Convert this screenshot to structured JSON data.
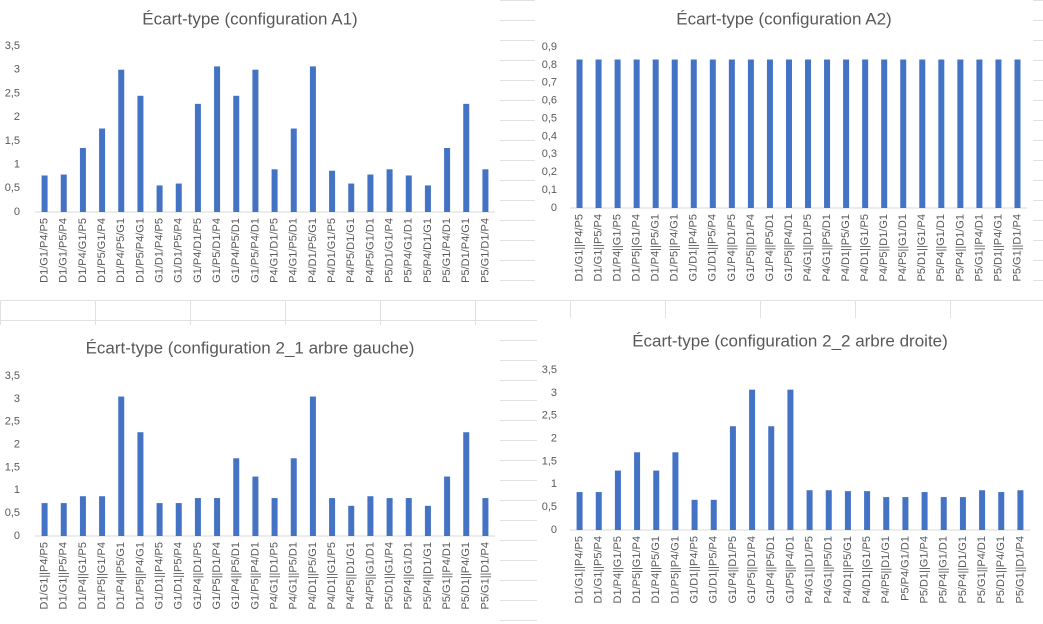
{
  "chart_data": [
    {
      "type": "bar",
      "title": "Écart-type (configuration A1)",
      "color": "#4472c4",
      "categories": [
        "D1/G1/P4/P5",
        "D1/G1/P5/P4",
        "D1/P4/G1/P5",
        "D1/P5/G1/P4",
        "D1/P4/P5/G1",
        "D1/P5/P4/G1",
        "G1/D1/P4/P5",
        "G1/D1/P5/P4",
        "G1/P4/D1/P5",
        "G1/P5/D1/P4",
        "G1/P4/P5/D1",
        "G1/P5/P4/D1",
        "P4/G1/D1/P5",
        "P4/G1/P5/D1",
        "P4/D1/P5/G1",
        "P4/D1/G1/P5",
        "P4/P5/D1/G1",
        "P4/P5/G1/D1",
        "P5/D1/G1/P4",
        "P5/P4/G1/D1",
        "P5/P4/D1/G1",
        "P5/G1/P4/D1",
        "P5/D1/P4/G1",
        "P5/G1/D1/P4"
      ],
      "values": [
        0.77,
        0.79,
        1.35,
        1.76,
        3.0,
        2.45,
        0.56,
        0.6,
        2.28,
        3.07,
        2.45,
        3.0,
        0.9,
        1.76,
        3.07,
        0.87,
        0.6,
        0.79,
        0.9,
        0.77,
        0.56,
        1.35,
        2.28,
        0.9
      ],
      "ylim": [
        0,
        3.5
      ],
      "yticks": [
        0,
        {
          "value": 0.5,
          "label": "0,5"
        },
        1,
        {
          "value": 1.5,
          "label": "1,5"
        },
        2,
        {
          "value": 2.5,
          "label": "2,5"
        },
        3,
        {
          "value": 3.5,
          "label": "3,5"
        }
      ]
    },
    {
      "type": "bar",
      "title": "Écart-type (configuration A2)",
      "color": "#4472c4",
      "categories": [
        "D1/G1||P4/P5",
        "D1/G1||P5/P4",
        "D1/P4||G1/P5",
        "D1/P5||G1/P4",
        "D1/P4||P5/G1",
        "D1/P5||P4/G1",
        "G1/D1||P4/P5",
        "G1/D1||P5/P4",
        "G1/P4||D1/P5",
        "G1/P5||D1/P4",
        "G1/P4||P5/D1",
        "G1/P5||P4/D1",
        "P4/G1||D1/P5",
        "P4/G1||P5/D1",
        "P4/D1||P5/G1",
        "P4/D1||G1/P5",
        "P4/P5||D1/G1",
        "P4/P5||G1/D1",
        "P5/D1||G1/P4",
        "P5/P4||G1/D1",
        "P5/P4||D1/G1",
        "P5/G1||P4/D1",
        "P5/D1||P4/G1",
        "P5/G1||D1/P4"
      ],
      "values": [
        0.83,
        0.83,
        0.83,
        0.83,
        0.83,
        0.83,
        0.83,
        0.83,
        0.83,
        0.83,
        0.83,
        0.83,
        0.83,
        0.83,
        0.83,
        0.83,
        0.83,
        0.83,
        0.83,
        0.83,
        0.83,
        0.83,
        0.83,
        0.83
      ],
      "ylim": [
        0,
        0.9
      ],
      "yticks": [
        0,
        {
          "value": 0.1,
          "label": "0,1"
        },
        {
          "value": 0.2,
          "label": "0,2"
        },
        {
          "value": 0.3,
          "label": "0,3"
        },
        {
          "value": 0.4,
          "label": "0,4"
        },
        {
          "value": 0.5,
          "label": "0,5"
        },
        {
          "value": 0.6,
          "label": "0,6"
        },
        {
          "value": 0.7,
          "label": "0,7"
        },
        {
          "value": 0.8,
          "label": "0,8"
        },
        {
          "value": 0.9,
          "label": "0,9"
        }
      ]
    },
    {
      "type": "bar",
      "title": "Écart-type (configuration 2_1 arbre gauche)",
      "color": "#4472c4",
      "categories": [
        "D1/G1||P4/P5",
        "D1/G1||P5/P4",
        "D1/P4||G1/P5",
        "D1/P5||G1/P4",
        "D1/P4||P5/G1",
        "D1/P5||P4/G1",
        "G1/D1||P4/P5",
        "G1/D1||P5/P4",
        "G1/P4||D1/P5",
        "G1/P5||D1/P4",
        "G1/P4||P5/D1",
        "G1/P5||P4/D1",
        "P4/G1||D1/P5",
        "P4/G1||P5/D1",
        "P4/D1||P5/G1",
        "P4/D1||G1/P5",
        "P4/P5||D1/G1",
        "P4/P5||G1/D1",
        "P5/D1||G1/P4",
        "P5/P4||G1/D1",
        "P5/P4||D1/G1",
        "P5/G1||P4/D1",
        "P5/D1||P4/G1",
        "P5/G1||D1/P4"
      ],
      "values": [
        0.72,
        0.72,
        0.87,
        0.87,
        3.05,
        2.27,
        0.72,
        0.72,
        0.83,
        0.83,
        1.7,
        1.3,
        0.83,
        1.7,
        3.05,
        0.83,
        0.66,
        0.87,
        0.83,
        0.83,
        0.66,
        1.3,
        2.27,
        0.83
      ],
      "ylim": [
        0,
        3.5
      ],
      "yticks": [
        0,
        {
          "value": 0.5,
          "label": "0,5"
        },
        1,
        {
          "value": 1.5,
          "label": "1,5"
        },
        2,
        {
          "value": 2.5,
          "label": "2,5"
        },
        3,
        {
          "value": 3.5,
          "label": "3,5"
        }
      ]
    },
    {
      "type": "bar",
      "title": "Écart-type (configuration 2_2 arbre droite)",
      "color": "#4472c4",
      "categories": [
        "D1/G1||P4/P5",
        "D1/G1||P5/P4",
        "D1/P4||G1/P5",
        "D1/P5||G1/P4",
        "D1/P4||P5/G1",
        "D1/P5||P4/G1",
        "G1/D1||P4/P5",
        "G1/D1||P5/P4",
        "G1/P4||D1/P5",
        "G1/P5||D1/P4",
        "G1/P4||P5/D1",
        "G1/P5||P4/D1",
        "P4/G1||D1/P5",
        "P4/G1||P5/D1",
        "P4/D1||P5/G1",
        "P4/D1||G1/P5",
        "P4/P5||D1/G1",
        "P5/P4/G1/D1",
        "P5/D1||G1/P4",
        "P5/P4||G1/D1",
        "P5/P4||D1/G1",
        "P5/G1||P4/D1",
        "P5/D1||P4/G1",
        "P5/G1||D1/P4"
      ],
      "values": [
        0.83,
        0.83,
        1.3,
        1.7,
        1.3,
        1.7,
        0.66,
        0.66,
        2.27,
        3.07,
        2.27,
        3.07,
        0.87,
        0.87,
        0.85,
        0.85,
        0.72,
        0.72,
        0.83,
        0.72,
        0.72,
        0.87,
        0.83,
        0.87
      ],
      "ylim": [
        0,
        3.5
      ],
      "yticks": [
        0,
        {
          "value": 0.5,
          "label": "0,5"
        },
        1,
        {
          "value": 1.5,
          "label": "1,5"
        },
        2,
        {
          "value": 2.5,
          "label": "2,5"
        },
        3,
        {
          "value": 3.5,
          "label": "3,5"
        }
      ]
    }
  ]
}
